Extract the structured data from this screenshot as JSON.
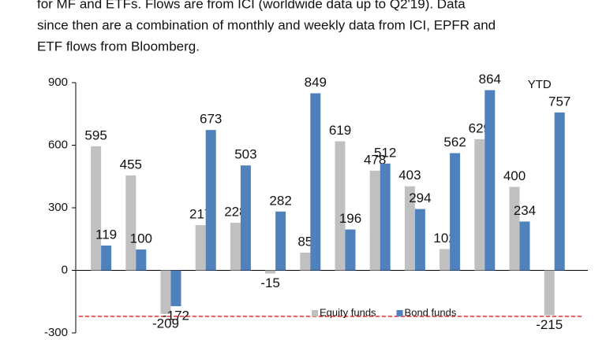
{
  "chart_data": {
    "type": "bar",
    "note": [
      "for MF and ETFs. Flows are from ICI (worldwide data up to Q2'19). Data",
      "since then are a combination of monthly and weekly data from ICI, EPFR and",
      "ETF flows from Bloomberg."
    ],
    "categories": [
      null,
      null,
      null,
      null,
      null,
      null,
      null,
      null,
      null,
      null,
      null,
      null,
      null,
      "YTD"
    ],
    "series": [
      {
        "name": "Equity funds",
        "color": "#c0c0c0",
        "values": [
          595,
          455,
          -209,
          217,
          228,
          -15,
          85,
          619,
          478,
          403,
          102,
          629,
          400,
          -215
        ]
      },
      {
        "name": "Bond funds",
        "color": "#4f81bd",
        "values": [
          119,
          100,
          -172,
          673,
          503,
          282,
          849,
          196,
          512,
          294,
          562,
          864,
          234,
          757
        ]
      }
    ],
    "ylim": [
      -300,
      900
    ],
    "yticks": [
      -300,
      0,
      300,
      600,
      900
    ]
  }
}
